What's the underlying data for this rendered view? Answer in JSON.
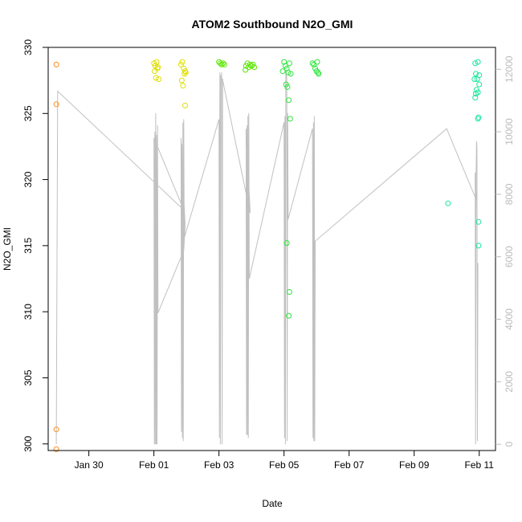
{
  "chart_data": {
    "type": "scatter",
    "title": "ATOM2 Southbound N2O_GMI",
    "xlabel": "Date",
    "ylabel": "N2O_GMI",
    "x_is_date": true,
    "xlim": [
      "2017-01-28T18:00",
      "2017-02-11T12:00"
    ],
    "ylim": [
      299.5,
      330
    ],
    "y2lim": [
      -200,
      12700
    ],
    "x_ticks": [
      {
        "date": "2017-01-30T00:00",
        "label": "Jan 30"
      },
      {
        "date": "2017-02-01T00:00",
        "label": "Feb 01"
      },
      {
        "date": "2017-02-03T00:00",
        "label": "Feb 03"
      },
      {
        "date": "2017-02-05T00:00",
        "label": "Feb 05"
      },
      {
        "date": "2017-02-07T00:00",
        "label": "Feb 07"
      },
      {
        "date": "2017-02-09T00:00",
        "label": "Feb 09"
      },
      {
        "date": "2017-02-11T00:00",
        "label": "Feb 11"
      }
    ],
    "y_ticks": [
      {
        "v": 300,
        "label": "300"
      },
      {
        "v": 305,
        "label": "305"
      },
      {
        "v": 310,
        "label": "310"
      },
      {
        "v": 315,
        "label": "315"
      },
      {
        "v": 320,
        "label": "320"
      },
      {
        "v": 325,
        "label": "325"
      },
      {
        "v": 330,
        "label": "330"
      }
    ],
    "y2_ticks": [
      {
        "v": 0,
        "label": "0"
      },
      {
        "v": 2000,
        "label": "2000"
      },
      {
        "v": 4000,
        "label": "4000"
      },
      {
        "v": 6000,
        "label": "6000"
      },
      {
        "v": 8000,
        "label": "8000"
      },
      {
        "v": 10000,
        "label": "10000"
      },
      {
        "v": 12000,
        "label": "12000"
      }
    ],
    "grid": false,
    "series": [
      {
        "color": "#ff8c1a",
        "points": [
          [
            "2017-01-29T00:00",
            328.7
          ],
          [
            "2017-01-29T00:00",
            325.7
          ],
          [
            "2017-01-29T00:00",
            301.1
          ],
          [
            "2017-01-29T00:00",
            299.6
          ]
        ]
      },
      {
        "color": "#dede00",
        "points": [
          [
            "2017-02-01T00:00",
            328.8
          ],
          [
            "2017-02-01T01:00",
            328.6
          ],
          [
            "2017-02-01T02:00",
            328.9
          ],
          [
            "2017-02-01T03:00",
            328.5
          ],
          [
            "2017-02-01T00:30",
            328.2
          ],
          [
            "2017-02-01T01:30",
            327.7
          ],
          [
            "2017-02-01T03:30",
            327.6
          ],
          [
            "2017-02-01T02:30",
            328.4
          ],
          [
            "2017-02-01T20:00",
            328.7
          ],
          [
            "2017-02-01T21:00",
            328.9
          ],
          [
            "2017-02-01T22:00",
            328.4
          ],
          [
            "2017-02-01T23:00",
            328.2
          ],
          [
            "2017-02-01T20:30",
            327.5
          ],
          [
            "2017-02-01T21:30",
            327.1
          ],
          [
            "2017-02-01T22:30",
            328.0
          ],
          [
            "2017-02-01T23:30",
            328.1
          ],
          [
            "2017-02-01T23:00",
            325.6
          ]
        ]
      },
      {
        "color": "#5ae600",
        "points": [
          [
            "2017-02-03T00:00",
            328.9
          ],
          [
            "2017-02-03T01:00",
            328.8
          ],
          [
            "2017-02-03T02:00",
            328.7
          ],
          [
            "2017-02-03T03:00",
            328.8
          ],
          [
            "2017-02-03T04:00",
            328.7
          ],
          [
            "2017-02-03T20:00",
            328.6
          ],
          [
            "2017-02-03T21:00",
            328.8
          ],
          [
            "2017-02-03T22:00",
            328.5
          ],
          [
            "2017-02-03T23:00",
            328.7
          ],
          [
            "2017-02-04T00:00",
            328.6
          ],
          [
            "2017-02-03T19:30",
            328.3
          ],
          [
            "2017-02-04T01:00",
            328.7
          ],
          [
            "2017-02-04T02:00",
            328.5
          ]
        ]
      },
      {
        "color": "#2ee63c",
        "points": [
          [
            "2017-02-05T00:00",
            328.9
          ],
          [
            "2017-02-05T01:00",
            328.6
          ],
          [
            "2017-02-05T02:00",
            328.4
          ],
          [
            "2017-02-04T23:00",
            328.2
          ],
          [
            "2017-02-05T03:00",
            328.1
          ],
          [
            "2017-02-05T04:00",
            328.8
          ],
          [
            "2017-02-05T05:00",
            328.0
          ],
          [
            "2017-02-05T01:30",
            327.2
          ],
          [
            "2017-02-05T02:30",
            327.0
          ],
          [
            "2017-02-05T03:30",
            326.0
          ],
          [
            "2017-02-05T04:30",
            324.6
          ],
          [
            "2017-02-05T02:00",
            315.2
          ],
          [
            "2017-02-05T04:00",
            311.5
          ],
          [
            "2017-02-05T03:30",
            309.7
          ],
          [
            "2017-02-05T21:00",
            328.8
          ],
          [
            "2017-02-05T22:00",
            328.7
          ],
          [
            "2017-02-05T23:00",
            328.4
          ],
          [
            "2017-02-06T00:00",
            328.2
          ],
          [
            "2017-02-06T00:30",
            328.9
          ],
          [
            "2017-02-06T01:00",
            328.1
          ],
          [
            "2017-02-06T01:30",
            328.0
          ]
        ]
      },
      {
        "color": "#1ae69c",
        "points": [
          [
            "2017-02-10T01:00",
            318.2
          ],
          [
            "2017-02-10T21:00",
            328.8
          ],
          [
            "2017-02-10T23:00",
            328.9
          ],
          [
            "2017-02-10T21:30",
            328.0
          ],
          [
            "2017-02-11T00:00",
            327.9
          ],
          [
            "2017-02-10T20:30",
            327.6
          ],
          [
            "2017-02-10T22:30",
            327.6
          ],
          [
            "2017-02-11T00:00",
            327.2
          ],
          [
            "2017-02-10T22:00",
            326.8
          ],
          [
            "2017-02-10T21:30",
            326.5
          ],
          [
            "2017-02-10T23:00",
            326.6
          ],
          [
            "2017-02-10T21:00",
            326.2
          ],
          [
            "2017-02-10T23:30",
            324.7
          ],
          [
            "2017-02-10T23:00",
            324.6
          ],
          [
            "2017-02-10T23:30",
            316.8
          ],
          [
            "2017-02-10T23:30",
            315.0
          ]
        ]
      }
    ],
    "altitude_series": {
      "color": "#c0c0c0",
      "axis": "right",
      "points": [
        [
          "2017-01-29T00:00",
          0
        ],
        [
          "2017-01-29T01:00",
          11300
        ],
        [
          "2017-02-01T22:00",
          7500
        ],
        [
          "2017-02-01T00:00",
          9800
        ],
        [
          "2017-02-01T00:20",
          0
        ],
        [
          "2017-02-01T00:40",
          10000
        ],
        [
          "2017-02-01T01:00",
          0
        ],
        [
          "2017-02-01T01:20",
          10600
        ],
        [
          "2017-02-01T01:40",
          0
        ],
        [
          "2017-02-01T02:00",
          9900
        ],
        [
          "2017-02-01T02:20",
          0
        ],
        [
          "2017-02-01T02:40",
          10200
        ],
        [
          "2017-02-01T03:00",
          4200
        ],
        [
          "2017-02-01T22:00",
          6200
        ],
        [
          "2017-02-01T23:00",
          7000
        ],
        [
          "2017-02-01T20:00",
          9800
        ],
        [
          "2017-02-01T20:20",
          400
        ],
        [
          "2017-02-01T20:40",
          9600
        ],
        [
          "2017-02-01T21:00",
          200
        ],
        [
          "2017-02-01T21:20",
          10300
        ],
        [
          "2017-02-01T21:40",
          100
        ],
        [
          "2017-02-01T22:00",
          10400
        ],
        [
          "2017-02-01T22:20",
          6600
        ],
        [
          "2017-02-03T00:00",
          10400
        ],
        [
          "2017-02-03T00:20",
          200
        ],
        [
          "2017-02-03T00:40",
          11900
        ],
        [
          "2017-02-03T01:00",
          0
        ],
        [
          "2017-02-03T01:20",
          11800
        ],
        [
          "2017-02-03T01:40",
          11500
        ],
        [
          "2017-02-03T02:00",
          11900
        ],
        [
          "2017-02-03T02:20",
          0
        ],
        [
          "2017-02-03T02:40",
          11700
        ],
        [
          "2017-02-03T03:00",
          11600
        ],
        [
          "2017-02-03T23:00",
          7400
        ],
        [
          "2017-02-03T20:00",
          10100
        ],
        [
          "2017-02-03T20:20",
          300
        ],
        [
          "2017-02-03T20:40",
          10200
        ],
        [
          "2017-02-03T21:00",
          300
        ],
        [
          "2017-02-03T21:20",
          10500
        ],
        [
          "2017-02-03T21:40",
          200
        ],
        [
          "2017-02-03T22:00",
          10600
        ],
        [
          "2017-02-03T22:20",
          5300
        ],
        [
          "2017-02-05T00:00",
          10300
        ],
        [
          "2017-02-05T00:20",
          200
        ],
        [
          "2017-02-05T00:40",
          10500
        ],
        [
          "2017-02-05T01:00",
          0
        ],
        [
          "2017-02-05T01:20",
          11900
        ],
        [
          "2017-02-05T01:40",
          11900
        ],
        [
          "2017-02-05T02:00",
          11700
        ],
        [
          "2017-02-05T02:20",
          100
        ],
        [
          "2017-02-05T02:40",
          10600
        ],
        [
          "2017-02-05T03:00",
          7200
        ],
        [
          "2017-02-05T21:00",
          10100
        ],
        [
          "2017-02-05T21:20",
          200
        ],
        [
          "2017-02-05T21:40",
          10300
        ],
        [
          "2017-02-05T22:00",
          100
        ],
        [
          "2017-02-05T22:20",
          10500
        ],
        [
          "2017-02-05T22:40",
          100
        ],
        [
          "2017-02-05T23:00",
          6500
        ],
        [
          "2017-02-10T00:00",
          10100
        ],
        [
          "2017-02-10T22:00",
          7800
        ],
        [
          "2017-02-10T21:00",
          8700
        ],
        [
          "2017-02-10T21:20",
          0
        ],
        [
          "2017-02-10T21:40",
          8500
        ],
        [
          "2017-02-10T22:00",
          9700
        ],
        [
          "2017-02-10T22:20",
          9500
        ],
        [
          "2017-02-10T22:40",
          100
        ],
        [
          "2017-02-10T23:00",
          5800
        ]
      ]
    }
  }
}
